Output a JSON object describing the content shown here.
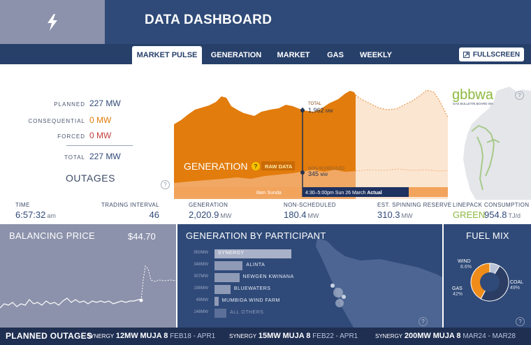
{
  "header": {
    "title": "DATA DASHBOARD",
    "logo_icon": "lightning-bolt-icon"
  },
  "tabs": [
    {
      "label": "MARKET PULSE",
      "active": true
    },
    {
      "label": "GENERATION",
      "active": false
    },
    {
      "label": "MARKET",
      "active": false
    },
    {
      "label": "GAS",
      "active": false
    },
    {
      "label": "WEEKLY",
      "active": false
    }
  ],
  "fullscreen_label": "FULLSCREEN",
  "outages": {
    "title": "OUTAGES",
    "rows": [
      {
        "label": "PLANNED",
        "value": "227",
        "unit": "MW"
      },
      {
        "label": "CONSEQUENTIAL",
        "value": "0",
        "unit": "MW"
      },
      {
        "label": "FORCED",
        "value": "0",
        "unit": "MW"
      },
      {
        "label": "TOTAL",
        "value": "227",
        "unit": "MW"
      }
    ]
  },
  "generation_chart": {
    "title": "GENERATION",
    "raw_data_label": "RAW DATA",
    "total_label": "TOTAL",
    "total_value": "1,962",
    "total_unit": "MW",
    "nonsched_label": "NON-SCHEDULED",
    "nonsched_value": "345",
    "nonsched_unit": "MW",
    "timeline_left": "8am Sunda",
    "timeline_selected": "4:30–5:00pm Sun 26 March",
    "timeline_status": "Actual"
  },
  "gbb": {
    "logo": "gbbwa",
    "subtitle": "GAS BULLETIN BOARD WA"
  },
  "metrics": {
    "time": {
      "label": "TIME",
      "value": "6:57:32",
      "unit": "am"
    },
    "trading_interval": {
      "label": "TRADING INTERVAL",
      "value": "46"
    },
    "generation": {
      "label": "GENERATION",
      "value": "2,020.9",
      "unit": "MW"
    },
    "non_scheduled": {
      "label": "NON-SCHEDULED",
      "value": "180.4",
      "unit": "MW"
    },
    "spinning_reserve": {
      "label": "EST. SPINNING RESERVE",
      "value": "310.3",
      "unit": "MW"
    },
    "linepack": {
      "label": "LINEPACK",
      "value": "GREEN"
    },
    "consumption": {
      "label": "CONSUMPTION",
      "value": "954.8",
      "unit": "TJ/d"
    }
  },
  "balancing_price": {
    "title": "BALANCING PRICE",
    "price": "$44.70"
  },
  "generation_by_participant": {
    "title": "GENERATION BY PARTICIPANT",
    "participants": [
      {
        "name": "SYNERGY",
        "mw": 950,
        "label": "950"
      },
      {
        "name": "ALINTA",
        "mw": 348,
        "label": "348"
      },
      {
        "name": "NEWGEN KWINANA",
        "mw": 307,
        "label": "307"
      },
      {
        "name": "BLUEWATERS",
        "mw": 198,
        "label": "198"
      },
      {
        "name": "MUMBIDA WIND FARM",
        "mw": 49,
        "label": "49"
      },
      {
        "name": "ALL OTHERS",
        "mw": 148,
        "label": "148"
      }
    ],
    "unit": "MW"
  },
  "fuel_mix": {
    "title": "FUEL MIX",
    "slices": [
      {
        "name": "WIND",
        "pct": 8.6,
        "label": "8.6%",
        "color": "#b9c2d6"
      },
      {
        "name": "COAL",
        "pct": 49,
        "label": "49%",
        "color": "#2c3d63"
      },
      {
        "name": "GAS",
        "pct": 42,
        "label": "42%",
        "color": "#f08c1a"
      }
    ]
  },
  "ticker": {
    "title": "PLANNED OUTAGES",
    "items": [
      {
        "participant": "SYNERGY",
        "mw": "12",
        "unit": "MW",
        "unit_name": "MUJA 8",
        "dates": "FEB18 - APR1"
      },
      {
        "participant": "SYNERGY",
        "mw": "15",
        "unit": "MW",
        "unit_name": "MUJA 8",
        "dates": "FEB22 - APR1"
      },
      {
        "participant": "SYNERGY",
        "mw": "200",
        "unit": "MW",
        "unit_name": "MUJA 8",
        "dates": "MAR24 - MAR28"
      }
    ]
  },
  "help_glyph": "?",
  "colors": {
    "primary": "#2f4a78",
    "nav": "#27406a",
    "orange": "#e07b0a",
    "ticker": "#1f2f52"
  }
}
